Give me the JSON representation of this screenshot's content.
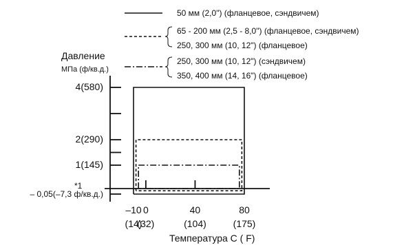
{
  "chart_data": {
    "type": "line",
    "ylabel": "Давление",
    "ylabel_unit": "МПа (ф/кв.д.)",
    "xlabel": "Температура  С ( F)",
    "x_ticks": [
      {
        "value": -10,
        "label": "–10",
        "sublabel": "(14)"
      },
      {
        "value": 0,
        "label": "0",
        "sublabel": "(32)"
      },
      {
        "value": 40,
        "label": "40",
        "sublabel": "(104)"
      },
      {
        "value": 80,
        "label": "80",
        "sublabel": "(175)"
      }
    ],
    "y_ticks": [
      {
        "value": 4,
        "label": "4(580)"
      },
      {
        "value": 2,
        "label": "2(290)"
      },
      {
        "value": 1,
        "label": "1(145)"
      },
      {
        "value": -0.05,
        "label": "– 0,05(–7,3 ф/кв.д.)"
      }
    ],
    "xlim": [
      -13,
      88
    ],
    "ylim": [
      -0.15,
      4.3
    ],
    "baseline_note": "*1",
    "baseline_value": 0,
    "series": [
      {
        "style": "solid",
        "legend": [
          "50 мм (2,0\") (фланцевое, сэндвичем)"
        ],
        "x": [
          -10,
          -10,
          80,
          80,
          -10
        ],
        "y": [
          -0.05,
          4,
          4,
          -0.05,
          -0.05
        ]
      },
      {
        "style": "dashed",
        "legend": [
          "65 - 200 мм (2,5 - 8,0\") (фланцевое, сэндвичем)",
          "250, 300 мм (10, 12\") (фланцевое)"
        ],
        "x": [
          -8,
          -8,
          78,
          78,
          -8
        ],
        "y": [
          -0.02,
          2,
          2,
          -0.02,
          -0.02
        ]
      },
      {
        "style": "dashdot",
        "legend": [
          "250, 300 мм (10, 12\") (сэндвичем)",
          "350, 400 мм (14, 16\") (фланцевое)"
        ],
        "x": [
          -6,
          -6,
          76,
          76,
          -6
        ],
        "y": [
          0,
          1,
          1,
          0,
          0
        ]
      }
    ],
    "inner_ticks_x": [
      0,
      40
    ]
  }
}
